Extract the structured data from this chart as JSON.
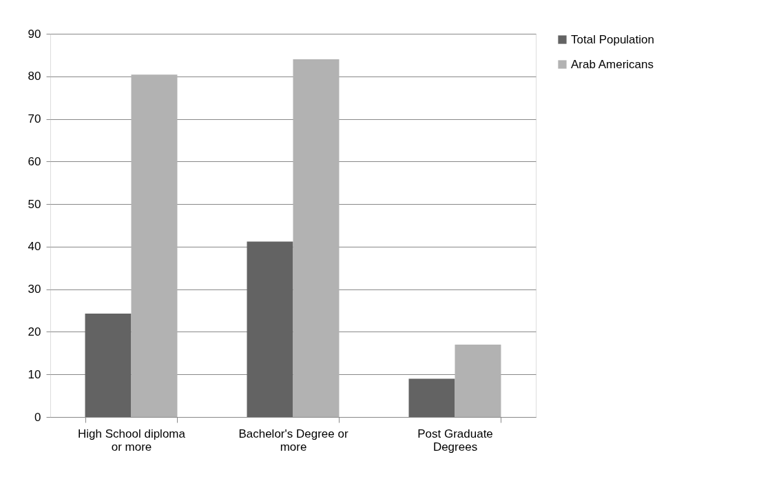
{
  "chart_data": {
    "type": "bar",
    "categories": [
      "High School diploma or more",
      "Bachelor's Degree or more",
      "Post Graduate Degrees"
    ],
    "series": [
      {
        "name": "Total Population",
        "color": "#636363",
        "values": [
          24.3,
          41.2,
          9.0
        ]
      },
      {
        "name": "Arab Americans",
        "color": "#b2b2b2",
        "values": [
          80.4,
          84.0,
          17.0
        ]
      }
    ],
    "ylim": [
      0,
      90
    ],
    "yticks": [
      0,
      10,
      20,
      30,
      40,
      50,
      60,
      70,
      80,
      90
    ],
    "grid": "y",
    "legend": "right"
  }
}
